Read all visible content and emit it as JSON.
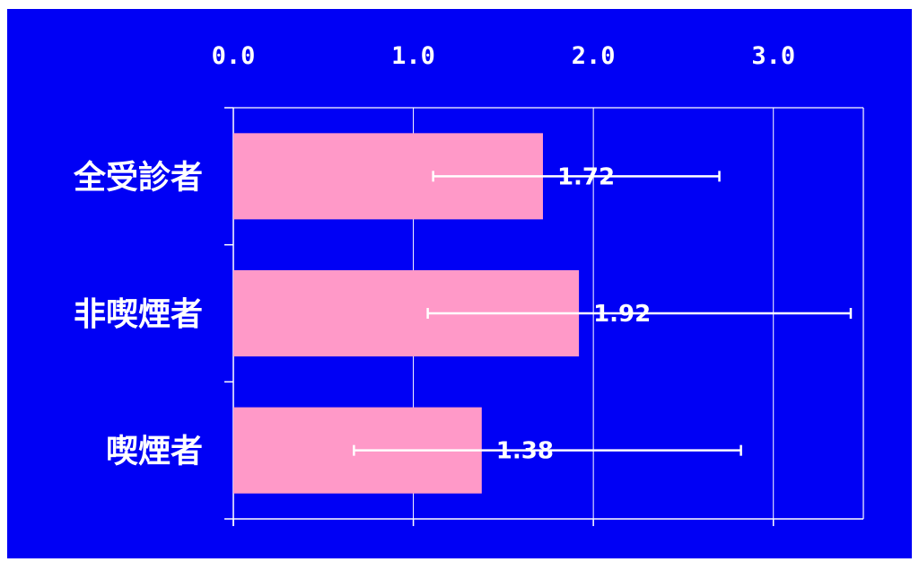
{
  "colors": {
    "background": "#0000f5",
    "bar": "#ff99c8",
    "axis": "#ffffff",
    "error_bar": "#ffffff",
    "text": "#ffffff"
  },
  "chart_data": {
    "type": "bar",
    "orientation": "horizontal",
    "categories": [
      "全受診者",
      "非喫煙者",
      "喫煙者"
    ],
    "values": [
      1.72,
      1.92,
      1.38
    ],
    "data_labels": [
      "1.72",
      "1.92",
      "1.38"
    ],
    "error_low": [
      1.11,
      1.08,
      0.67
    ],
    "error_high": [
      2.7,
      3.43,
      2.82
    ],
    "xlim": [
      0,
      3.5
    ],
    "x_ticks": [
      0,
      1,
      2,
      3
    ],
    "x_tick_labels": [
      "0.0",
      "1.0",
      "2.0",
      "3.0"
    ],
    "x_axis_position": "top",
    "grid": "vertical",
    "legend": "none",
    "title": "",
    "xlabel": "",
    "ylabel": ""
  }
}
